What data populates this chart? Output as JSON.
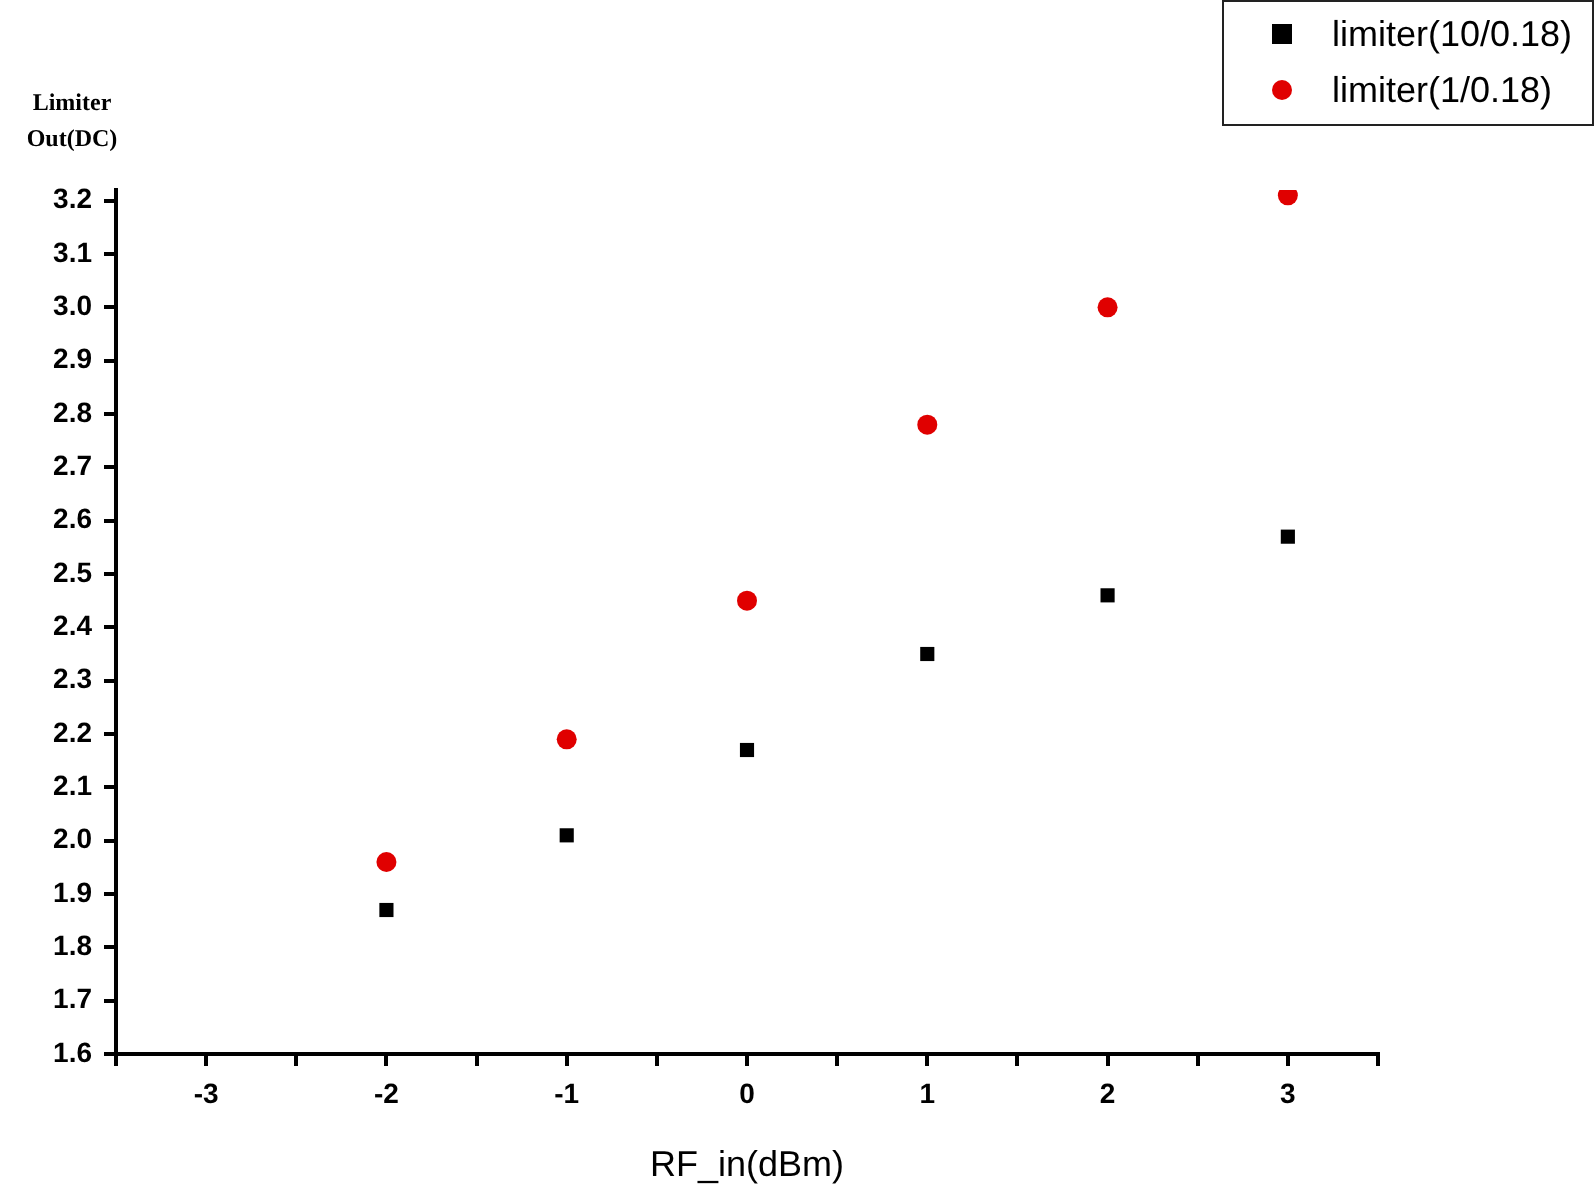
{
  "chart_data": {
    "type": "scatter",
    "xlabel": "RF_in(dBm)",
    "ylabel": "Limiter Out(DC)",
    "x": [
      -2,
      -1,
      0,
      1,
      2,
      3
    ],
    "series": [
      {
        "name": "limiter(10/0.18)",
        "color": "#000000",
        "marker": "square",
        "values": [
          1.87,
          2.01,
          2.17,
          2.35,
          2.46,
          2.57
        ]
      },
      {
        "name": "limiter(1/0.18)",
        "color": "#e00000",
        "marker": "circle",
        "values": [
          1.96,
          2.19,
          2.45,
          2.78,
          3.0,
          3.21
        ]
      }
    ],
    "xlim": [
      -3.5,
      3.5
    ],
    "xticks": [
      {
        "value": -3.5,
        "label": null
      },
      -3,
      {
        "value": -2.5,
        "label": null
      },
      -2,
      {
        "value": -1.5,
        "label": null
      },
      -1,
      {
        "value": -0.5,
        "label": null
      },
      0,
      {
        "value": 0.5,
        "label": null
      },
      1,
      {
        "value": 1.5,
        "label": null
      },
      2,
      {
        "value": 2.5,
        "label": null
      },
      3,
      {
        "value": 3.5,
        "label": null
      }
    ],
    "ylim": [
      1.6,
      3.22
    ],
    "yticks": [
      {
        "value": 1.6,
        "label": "1.6"
      },
      {
        "value": 1.7,
        "label": "1.7"
      },
      {
        "value": 1.8,
        "label": "1.8"
      },
      {
        "value": 1.9,
        "label": "1.9"
      },
      {
        "value": 2.0,
        "label": "2.0"
      },
      {
        "value": 2.1,
        "label": "2.1"
      },
      {
        "value": 2.2,
        "label": "2.2"
      },
      {
        "value": 2.3,
        "label": "2.3"
      },
      {
        "value": 2.4,
        "label": "2.4"
      },
      {
        "value": 2.5,
        "label": "2.5"
      },
      {
        "value": 2.6,
        "label": "2.6"
      },
      {
        "value": 2.7,
        "label": "2.7"
      },
      {
        "value": 2.8,
        "label": "2.8"
      },
      {
        "value": 2.9,
        "label": "2.9"
      },
      {
        "value": 3.0,
        "label": "3.0"
      },
      {
        "value": 3.1,
        "label": "3.1"
      },
      {
        "value": 3.2,
        "label": "3.2"
      }
    ],
    "grid": false,
    "legend": "top right"
  }
}
